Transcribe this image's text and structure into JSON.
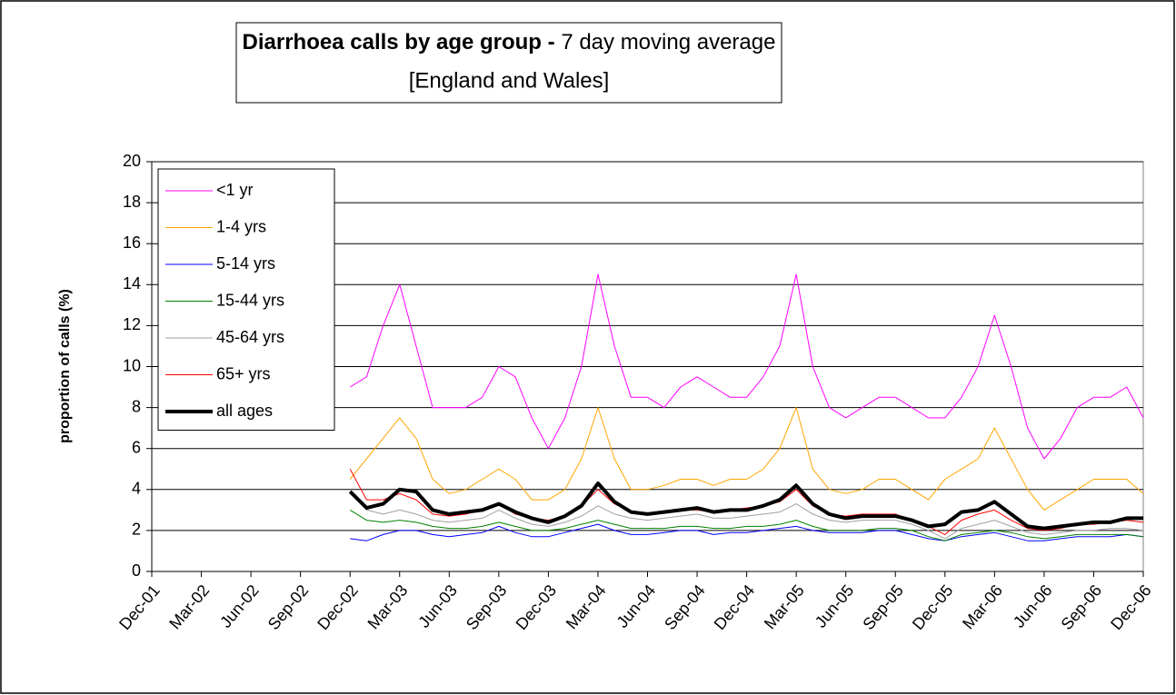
{
  "chart_data": {
    "type": "line",
    "title": "Diarrhoea calls by age group -",
    "subtitle": "7 day moving average",
    "subtitle2": "[England and Wales]",
    "y_label": "proportion of calls (%)",
    "ylim": [
      0,
      20
    ],
    "yticks": [
      0,
      2,
      4,
      6,
      8,
      10,
      12,
      14,
      16,
      18,
      20
    ],
    "grid": true,
    "legend": "top-left",
    "categories": [
      "Dec-01",
      null,
      null,
      "Mar-02",
      null,
      null,
      "Jun-02",
      null,
      null,
      "Sep-02",
      null,
      null,
      "Dec-02",
      null,
      null,
      "Mar-03",
      null,
      null,
      "Jun-03",
      null,
      null,
      "Sep-03",
      null,
      null,
      "Dec-03",
      null,
      null,
      "Mar-04",
      null,
      null,
      "Jun-04",
      null,
      null,
      "Sep-04",
      null,
      null,
      "Dec-04",
      null,
      null,
      "Mar-05",
      null,
      null,
      "Jun-05",
      null,
      null,
      "Sep-05",
      null,
      null,
      "Dec-05",
      null,
      null,
      "Mar-06",
      null,
      null,
      "Jun-06",
      null,
      null,
      "Sep-06",
      null,
      null,
      "Dec-06"
    ],
    "series": [
      {
        "name": "<1 yr",
        "color": "#ff00ff",
        "width": 1,
        "values": [
          null,
          null,
          null,
          null,
          null,
          null,
          null,
          null,
          null,
          null,
          null,
          null,
          9,
          9.5,
          12,
          14,
          11,
          8,
          8,
          8,
          8.5,
          10,
          9.5,
          7.5,
          6,
          7.5,
          10,
          14.5,
          11,
          8.5,
          8.5,
          8,
          9,
          9.5,
          9,
          8.5,
          8.5,
          9.5,
          11,
          14.5,
          10,
          8,
          7.5,
          8,
          8.5,
          8.5,
          8,
          7.5,
          7.5,
          8.5,
          10,
          12.5,
          10,
          7,
          5.5,
          6.5,
          8,
          8.5,
          8.5,
          9,
          7.5
        ]
      },
      {
        "name": "1-4 yrs",
        "color": "#ffa500",
        "width": 1,
        "values": [
          null,
          null,
          null,
          null,
          null,
          null,
          null,
          null,
          null,
          null,
          null,
          null,
          4.5,
          5.5,
          6.5,
          7.5,
          6.5,
          4.5,
          3.8,
          4,
          4.5,
          5,
          4.5,
          3.5,
          3.5,
          4,
          5.5,
          8,
          5.5,
          4,
          4,
          4.2,
          4.5,
          4.5,
          4.2,
          4.5,
          4.5,
          5,
          6,
          8,
          5,
          4,
          3.8,
          4,
          4.5,
          4.5,
          4,
          3.5,
          4.5,
          5,
          5.5,
          7,
          5.5,
          4,
          3,
          3.5,
          4,
          4.5,
          4.5,
          4.5,
          3.8
        ]
      },
      {
        "name": "5-14 yrs",
        "color": "#0000ff",
        "width": 1,
        "values": [
          null,
          null,
          null,
          null,
          null,
          null,
          null,
          null,
          null,
          null,
          null,
          null,
          1.6,
          1.5,
          1.8,
          2,
          2,
          1.8,
          1.7,
          1.8,
          1.9,
          2.2,
          1.9,
          1.7,
          1.7,
          1.9,
          2.1,
          2.3,
          2,
          1.8,
          1.8,
          1.9,
          2,
          2,
          1.8,
          1.9,
          1.9,
          2,
          2.1,
          2.2,
          2,
          1.9,
          1.9,
          1.9,
          2,
          2,
          1.8,
          1.6,
          1.5,
          1.7,
          1.8,
          1.9,
          1.7,
          1.5,
          1.5,
          1.6,
          1.7,
          1.7,
          1.7,
          1.8,
          1.7
        ]
      },
      {
        "name": "15-44 yrs",
        "color": "#008000",
        "width": 1,
        "values": [
          null,
          null,
          null,
          null,
          null,
          null,
          null,
          null,
          null,
          null,
          null,
          null,
          3,
          2.5,
          2.4,
          2.5,
          2.4,
          2.2,
          2.1,
          2.1,
          2.2,
          2.4,
          2.2,
          2,
          2,
          2.1,
          2.3,
          2.5,
          2.3,
          2.1,
          2.1,
          2.1,
          2.2,
          2.2,
          2.1,
          2.1,
          2.2,
          2.2,
          2.3,
          2.5,
          2.2,
          2,
          2,
          2,
          2.1,
          2.1,
          2,
          1.7,
          1.5,
          1.8,
          1.9,
          2,
          1.9,
          1.7,
          1.6,
          1.7,
          1.8,
          1.8,
          1.8,
          1.8,
          1.7
        ]
      },
      {
        "name": "45-64 yrs",
        "color": "#a0a0a0",
        "width": 1,
        "values": [
          null,
          null,
          null,
          null,
          null,
          null,
          null,
          null,
          null,
          null,
          null,
          null,
          4,
          3,
          2.8,
          3,
          2.8,
          2.5,
          2.4,
          2.5,
          2.6,
          3,
          2.6,
          2.3,
          2.2,
          2.4,
          2.7,
          3.2,
          2.8,
          2.6,
          2.5,
          2.6,
          2.7,
          2.8,
          2.6,
          2.6,
          2.7,
          2.8,
          2.9,
          3.3,
          2.8,
          2.5,
          2.4,
          2.5,
          2.5,
          2.5,
          2.3,
          2,
          1.6,
          2.1,
          2.3,
          2.5,
          2.2,
          1.9,
          1.8,
          1.9,
          2,
          2,
          2.1,
          2.1,
          2
        ]
      },
      {
        "name": "65+ yrs",
        "color": "#ff0000",
        "width": 1,
        "values": [
          null,
          null,
          null,
          null,
          null,
          null,
          null,
          null,
          null,
          null,
          null,
          null,
          5,
          3.5,
          3.5,
          3.8,
          3.5,
          2.8,
          2.7,
          2.8,
          3,
          3.3,
          2.8,
          2.6,
          2.5,
          2.7,
          3.2,
          4,
          3.3,
          2.9,
          2.8,
          2.9,
          3,
          3,
          2.9,
          3,
          3.1,
          3.2,
          3.4,
          4,
          3.2,
          2.8,
          2.7,
          2.8,
          2.8,
          2.8,
          2.5,
          2.2,
          1.8,
          2.5,
          2.8,
          3,
          2.5,
          2.1,
          2,
          2.1,
          2.3,
          2.3,
          2.4,
          2.5,
          2.4
        ]
      },
      {
        "name": "all ages",
        "color": "#000000",
        "width": 4,
        "values": [
          null,
          null,
          null,
          null,
          null,
          null,
          null,
          null,
          null,
          null,
          null,
          null,
          3.9,
          3.1,
          3.3,
          4,
          3.9,
          3,
          2.8,
          2.9,
          3,
          3.3,
          2.9,
          2.6,
          2.4,
          2.7,
          3.2,
          4.3,
          3.4,
          2.9,
          2.8,
          2.9,
          3,
          3.1,
          2.9,
          3,
          3,
          3.2,
          3.5,
          4.2,
          3.3,
          2.8,
          2.6,
          2.7,
          2.7,
          2.7,
          2.5,
          2.2,
          2.3,
          2.9,
          3,
          3.4,
          2.8,
          2.2,
          2.1,
          2.2,
          2.3,
          2.4,
          2.4,
          2.6,
          2.6
        ]
      }
    ]
  }
}
